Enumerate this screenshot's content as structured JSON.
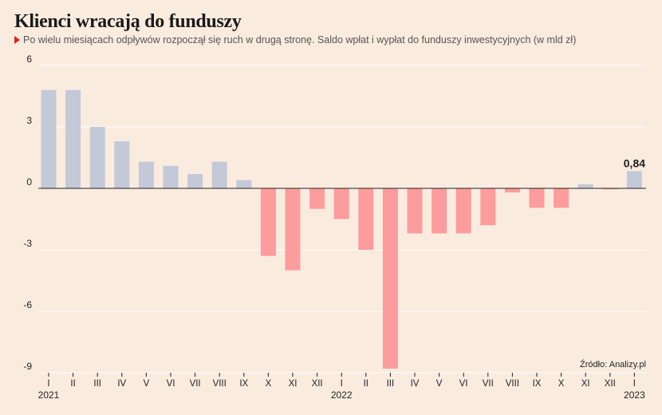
{
  "title": "Klienci wracają do funduszy",
  "subtitle": "Po wielu miesiącach odpływów rozpoczął się ruch w drugą stronę. Saldo wpłat i wypłat do funduszy inwestycyjnych (w mld zł)",
  "source": "Źródło: Analizy.pl",
  "colors": {
    "positive": "#c4c9d8",
    "negative": "#fc9c9c",
    "grid": "#ffffff",
    "zero_line": "#222222",
    "text": "#222222"
  },
  "chart_data": {
    "type": "bar",
    "title": "Klienci wracają do funduszy",
    "subtitle": "Po wielu miesiącach odpływów rozpoczął się ruch w drugą stronę. Saldo wpłat i wypłat do funduszy inwestycyjnych (w mld zł)",
    "categories": [
      "I",
      "II",
      "III",
      "IV",
      "V",
      "VI",
      "VII",
      "VIII",
      "IX",
      "X",
      "XI",
      "XII",
      "I",
      "II",
      "III",
      "IV",
      "V",
      "VI",
      "VII",
      "VIII",
      "IX",
      "X",
      "XI",
      "XII",
      "I"
    ],
    "years": [
      {
        "label": "2021",
        "index": 0
      },
      {
        "label": "2022",
        "index": 12
      },
      {
        "label": "2023",
        "index": 24
      }
    ],
    "values": [
      4.8,
      4.8,
      3.0,
      2.3,
      1.3,
      1.1,
      0.7,
      1.3,
      0.4,
      -3.3,
      -4.0,
      -1.0,
      -1.5,
      -3.0,
      -8.8,
      -2.2,
      -2.2,
      -2.2,
      -1.8,
      -0.2,
      -0.95,
      -0.95,
      0.2,
      -0.05,
      0.84
    ],
    "data_labels": [
      {
        "index": 24,
        "text": "0,84"
      }
    ],
    "yticks": [
      {
        "value": 6,
        "label": "6"
      },
      {
        "value": 3,
        "label": "3"
      },
      {
        "value": 0,
        "label": "0"
      },
      {
        "value": -3,
        "label": "-3"
      },
      {
        "value": -6,
        "label": "-6"
      },
      {
        "value": -9,
        "label": "-9"
      }
    ],
    "ylim": [
      -9,
      6
    ],
    "xlabel": "",
    "ylabel": "",
    "grid": true
  }
}
